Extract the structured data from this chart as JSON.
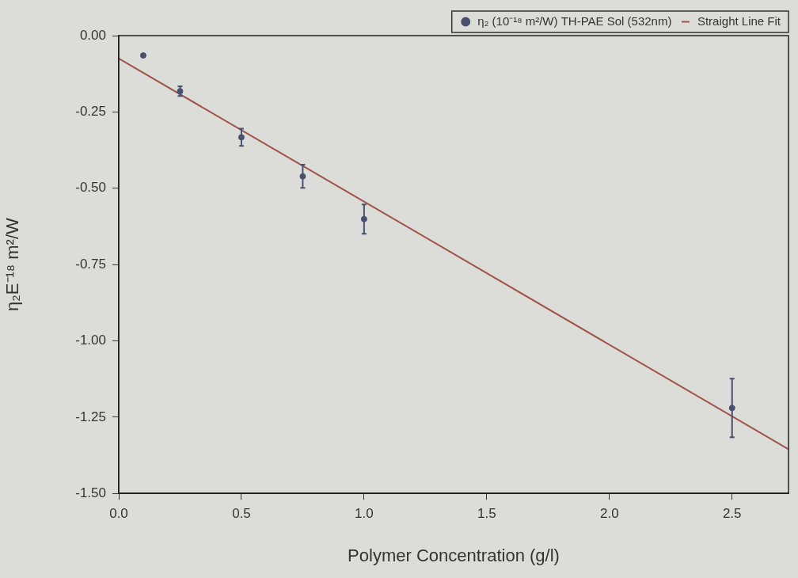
{
  "chart_data": {
    "type": "scatter",
    "xlabel": "Polymer Concentration (g/l)",
    "ylabel": "η₂E⁻¹⁸ m²/W",
    "xlim": [
      0,
      2.73
    ],
    "xticks": [
      {
        "value": 0,
        "label": "0.0"
      },
      {
        "value": 0.5,
        "label": "0.5"
      },
      {
        "value": 1,
        "label": "1.0"
      },
      {
        "value": 1.5,
        "label": "1.5"
      },
      {
        "value": 2,
        "label": "2.0"
      },
      {
        "value": 2.5,
        "label": "2.5"
      }
    ],
    "ylim": [
      -1.5,
      0
    ],
    "yticks": [
      {
        "value": 0,
        "label": "0.00"
      },
      {
        "value": -0.25,
        "label": "-0.25"
      },
      {
        "value": -0.5,
        "label": "-0.50"
      },
      {
        "value": -0.75,
        "label": "-0.75"
      },
      {
        "value": -1,
        "label": "-1.00"
      },
      {
        "value": -1.25,
        "label": "-1.25"
      },
      {
        "value": -1.5,
        "label": "-1.50"
      }
    ],
    "grid": false,
    "legend": "top right",
    "marker": "circle",
    "series": [
      {
        "name": "η₂ (10⁻¹⁸ m²/W) TH-PAE Sol (532nm)",
        "color": "#4a5070",
        "x": [
          0.1,
          0.25,
          0.5,
          0.75,
          1,
          2.5
        ],
        "values": [
          -0.065,
          -0.182,
          -0.333,
          -0.461,
          -0.601,
          -1.22
        ],
        "errors": [
          0.005,
          0.016,
          0.028,
          0.038,
          0.048,
          0.096
        ]
      },
      {
        "name": "Straight Line Fit",
        "type": "line",
        "color": "#a0524a",
        "x": [
          0,
          2.73
        ],
        "values": [
          -0.075,
          -1.355
        ],
        "marker": "none"
      }
    ]
  }
}
